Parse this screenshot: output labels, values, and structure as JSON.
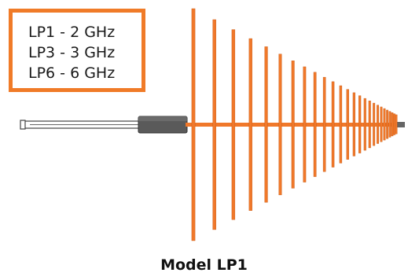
{
  "legend": {
    "lines": [
      "LP1 - 2 GHz",
      "LP3 - 3 GHz",
      "LP6 - 6 GHz"
    ]
  },
  "caption": "Model LP1",
  "colors": {
    "accent": "#f07b28",
    "element": "#f0782a",
    "connector": "#555555"
  },
  "icons": {
    "antenna": "log-periodic-antenna-icon"
  }
}
